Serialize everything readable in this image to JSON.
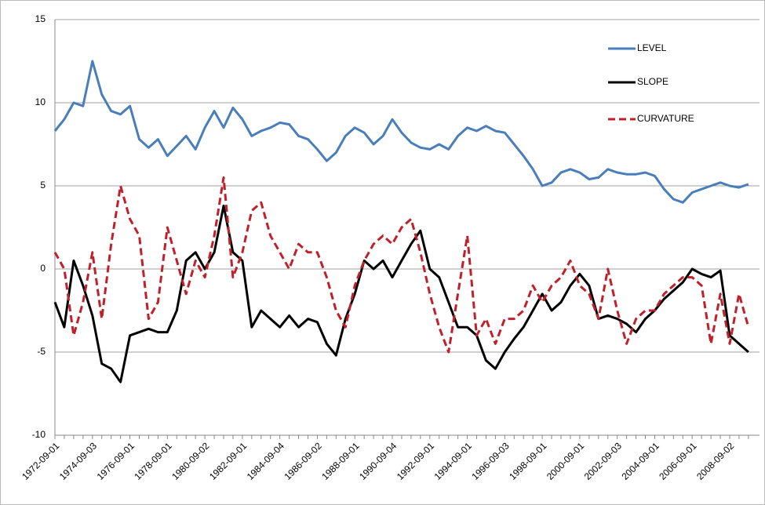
{
  "chart_data": {
    "type": "line",
    "categories": [
      "1972-09-01",
      null,
      null,
      null,
      "1974-09-03",
      null,
      null,
      null,
      "1976-09-01",
      null,
      null,
      null,
      "1978-09-01",
      null,
      null,
      null,
      "1980-09-02",
      null,
      null,
      null,
      "1982-09-01",
      null,
      null,
      null,
      "1984-09-04",
      null,
      null,
      null,
      "1986-09-02",
      null,
      null,
      null,
      "1988-09-01",
      null,
      null,
      null,
      "1990-09-04",
      null,
      null,
      null,
      "1992-09-01",
      null,
      null,
      null,
      "1994-09-01",
      null,
      null,
      null,
      "1996-09-03",
      null,
      null,
      null,
      "1998-09-01",
      null,
      null,
      null,
      "2000-09-01",
      null,
      null,
      null,
      "2002-09-03",
      null,
      null,
      null,
      "2004-09-01",
      null,
      null,
      null,
      "2006-09-01",
      null,
      null,
      null,
      "2008-09-02",
      null,
      null
    ],
    "series": [
      {
        "name": "LEVEL",
        "color": "#4a7ebb",
        "dashed": false,
        "values": [
          8.3,
          9.0,
          10.0,
          9.8,
          12.5,
          10.5,
          9.5,
          9.3,
          9.8,
          7.8,
          7.3,
          7.8,
          6.8,
          7.4,
          8.0,
          7.2,
          8.5,
          9.5,
          8.5,
          9.7,
          9.0,
          8.0,
          8.3,
          8.5,
          8.8,
          8.7,
          8.0,
          7.8,
          7.2,
          6.5,
          7.0,
          8.0,
          8.5,
          8.2,
          7.5,
          8.0,
          9.0,
          8.2,
          7.6,
          7.3,
          7.2,
          7.5,
          7.2,
          8.0,
          8.5,
          8.3,
          8.6,
          8.3,
          8.2,
          7.5,
          6.8,
          6.0,
          5.0,
          5.2,
          5.8,
          6.0,
          5.8,
          5.4,
          5.5,
          6.0,
          5.8,
          5.7,
          5.7,
          5.8,
          5.6,
          4.8,
          4.2,
          4.0,
          4.6,
          4.8,
          5.0,
          5.2,
          5.0,
          4.9,
          5.1
        ]
      },
      {
        "name": "SLOPE",
        "color": "#000000",
        "dashed": false,
        "values": [
          -2.0,
          -3.5,
          0.5,
          -1.0,
          -2.8,
          -5.7,
          -6.0,
          -6.8,
          -4.0,
          -3.8,
          -3.6,
          -3.8,
          -3.8,
          -2.5,
          0.5,
          1.0,
          0.0,
          1.0,
          3.8,
          1.0,
          0.5,
          -3.5,
          -2.5,
          -3.0,
          -3.5,
          -2.8,
          -3.5,
          -3.0,
          -3.2,
          -4.5,
          -5.2,
          -3.0,
          -1.5,
          0.5,
          0.0,
          0.5,
          -0.5,
          0.5,
          1.5,
          2.3,
          0.0,
          -0.5,
          -2.0,
          -3.5,
          -3.5,
          -4.0,
          -5.5,
          -6.0,
          -5.0,
          -4.2,
          -3.5,
          -2.5,
          -1.5,
          -2.5,
          -2.0,
          -1.0,
          -0.3,
          -1.0,
          -3.0,
          -2.8,
          -3.0,
          -3.3,
          -3.8,
          -3.0,
          -2.5,
          -1.8,
          -1.3,
          -0.8,
          0.0,
          -0.3,
          -0.5,
          -0.1,
          -4.0,
          -4.5,
          -5.0
        ]
      },
      {
        "name": "CURVATURE",
        "color": "#c0202a",
        "dashed": true,
        "values": [
          1.0,
          0.0,
          -4.0,
          -2.0,
          1.0,
          -3.0,
          1.5,
          5.0,
          3.0,
          2.0,
          -3.0,
          -2.0,
          2.5,
          0.5,
          -1.5,
          0.5,
          -0.5,
          2.0,
          5.5,
          -0.5,
          1.0,
          3.5,
          4.0,
          2.0,
          1.0,
          0.0,
          1.5,
          1.0,
          1.0,
          -0.5,
          -2.5,
          -3.5,
          -1.0,
          0.5,
          1.5,
          2.0,
          1.5,
          2.5,
          3.0,
          1.0,
          -1.5,
          -3.5,
          -5.0,
          -1.5,
          2.0,
          -4.0,
          -3.0,
          -4.5,
          -3.0,
          -3.0,
          -2.5,
          -1.0,
          -2.0,
          -1.0,
          -0.5,
          0.5,
          -1.0,
          -1.5,
          -3.0,
          0.0,
          -2.5,
          -4.5,
          -3.0,
          -2.5,
          -2.5,
          -1.5,
          -1.0,
          -0.5,
          -0.5,
          -1.0,
          -4.5,
          -1.5,
          -4.5,
          -1.5,
          -3.5
        ]
      }
    ],
    "ylim": [
      -10,
      15
    ],
    "yticks": [
      -10,
      -5,
      0,
      5,
      10,
      15
    ],
    "grid": true,
    "legend": "upper right"
  }
}
